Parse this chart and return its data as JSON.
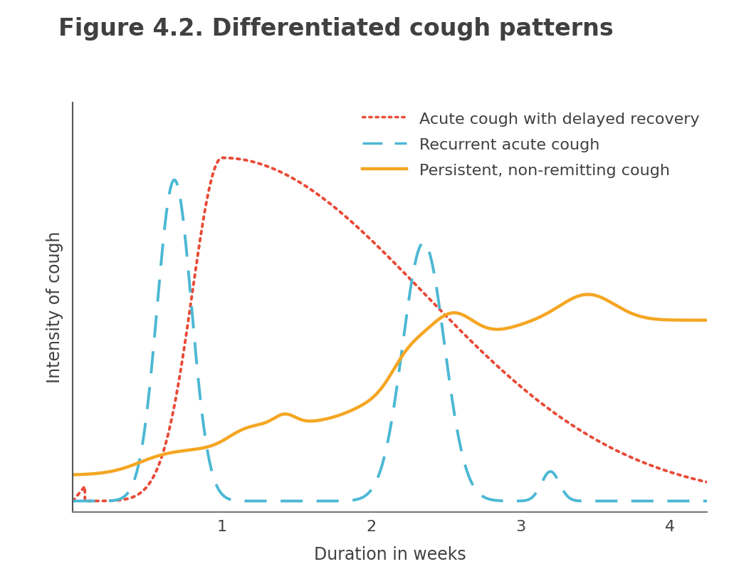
{
  "title": "Figure 4.2. Differentiated cough patterns",
  "title_fontsize": 24,
  "title_color": "#404040",
  "xlabel": "Duration in weeks",
  "ylabel": "Intensity of cough",
  "xlabel_fontsize": 17,
  "ylabel_fontsize": 17,
  "tick_fontsize": 16,
  "xlim": [
    0,
    4.25
  ],
  "ylim": [
    -0.03,
    1.08
  ],
  "xticks": [
    1,
    2,
    3,
    4
  ],
  "background_color": "#ffffff",
  "line_acute_color": "#E84B37",
  "line_recurrent_color": "#4BB8D4",
  "line_persistent_color": "#F5A623",
  "legend_labels": [
    "Acute cough with delayed recovery",
    "Recurrent acute cough",
    "Persistent, non-remitting cough"
  ],
  "legend_fontsize": 16
}
